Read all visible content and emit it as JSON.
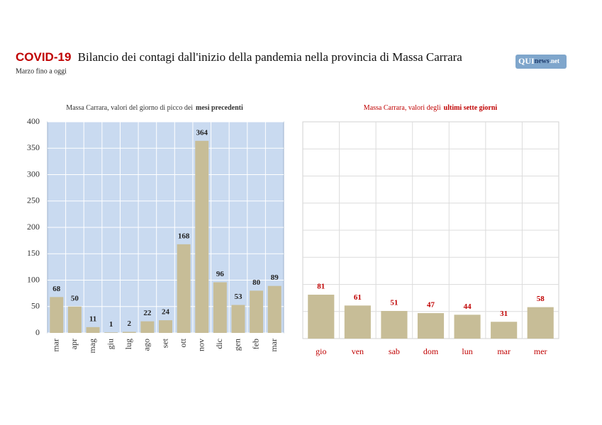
{
  "header": {
    "title_highlight": "COVID-19",
    "title": "Bilancio dei contagi dall'inizio della pandemia nella provincia di Massa Carrara",
    "subtitle": "Marzo fino a oggi",
    "logo": [
      "QUI",
      "news",
      ".net"
    ]
  },
  "chart_data": [
    {
      "type": "bar",
      "title": "Massa Carrara, valori del giorno di picco dei",
      "title_bold": "mesi precedenti",
      "categories": [
        "mar",
        "apr",
        "mag",
        "giu",
        "lug",
        "ago",
        "set",
        "ott",
        "nov",
        "dic",
        "gen",
        "feb",
        "mar"
      ],
      "values": [
        68,
        50,
        11,
        1,
        2,
        22,
        24,
        168,
        364,
        96,
        53,
        80,
        89
      ],
      "color": "#c7bd97",
      "background": "#c9daf0",
      "label_color": "#222222",
      "ylim": [
        0,
        400
      ],
      "yticks": [
        0,
        50,
        100,
        150,
        200,
        250,
        300,
        350,
        400
      ],
      "grid": true
    },
    {
      "type": "bar",
      "title": "Massa Carrara, valori degli",
      "title_bold": "ultimi sette giorni",
      "categories": [
        "gio",
        "ven",
        "sab",
        "dom",
        "lun",
        "mar",
        "mer"
      ],
      "values": [
        81,
        61,
        51,
        47,
        44,
        31,
        58
      ],
      "color": "#c7bd97",
      "background": "#ffffff",
      "label_color": "#c00000",
      "ylim": [
        0,
        400
      ],
      "grid": true
    }
  ]
}
